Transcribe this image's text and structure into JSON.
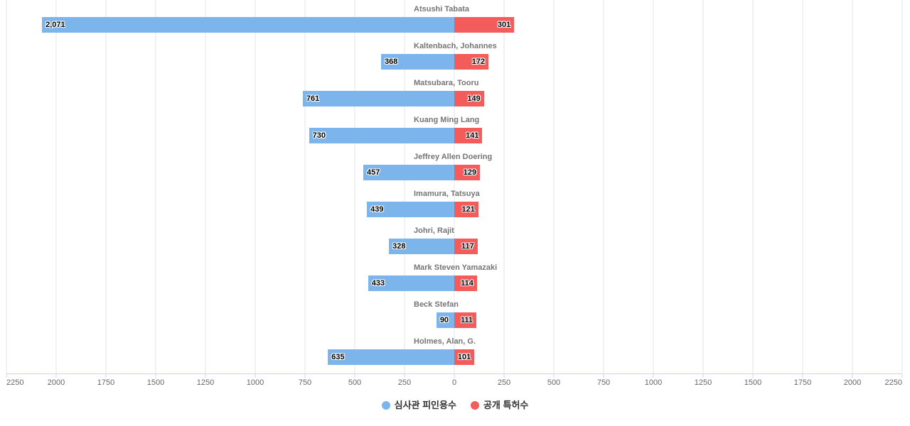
{
  "chart_data": {
    "type": "bar",
    "variant": "diverging-horizontal",
    "title": "",
    "categories": [
      "Atsushi Tabata",
      "Kaltenbach, Johannes",
      "Matsubara, Tooru",
      "Kuang Ming Lang",
      "Jeffrey Allen Doering",
      "Imamura, Tatsuya",
      "Johri, Rajit",
      "Mark Steven Yamazaki",
      "Beck Stefan",
      "Holmes, Alan, G."
    ],
    "series": [
      {
        "name": "심사관 피인용수",
        "side": "left",
        "color": "#7cb5ec",
        "values": [
          2071,
          368,
          761,
          730,
          457,
          439,
          328,
          433,
          90,
          635
        ],
        "labels": [
          "2,071",
          "368",
          "761",
          "730",
          "457",
          "439",
          "328",
          "433",
          "90",
          "635"
        ]
      },
      {
        "name": "공개 특허수",
        "side": "right",
        "color": "#f45b5b",
        "values": [
          301,
          172,
          149,
          141,
          129,
          121,
          117,
          114,
          111,
          101
        ],
        "labels": [
          "301",
          "172",
          "149",
          "141",
          "129",
          "121",
          "117",
          "114",
          "111",
          "101"
        ]
      }
    ],
    "x_axis": {
      "min": -2250,
      "max": 2250,
      "tick_interval": 250,
      "tick_labels": [
        "2250",
        "2000",
        "1750",
        "1500",
        "1250",
        "1000",
        "750",
        "500",
        "250",
        "0",
        "250",
        "500",
        "750",
        "1000",
        "1250",
        "1500",
        "1750",
        "2000",
        "2250"
      ]
    },
    "grid": true,
    "legend": {
      "position": "bottom",
      "items": [
        {
          "label": "심사관 피인용수",
          "color": "#7cb5ec"
        },
        {
          "label": "공개 특허수",
          "color": "#f45b5b"
        }
      ]
    },
    "colors": {
      "grid_line": "#e6e6e6",
      "axis_line": "#ccd6eb",
      "axis_label": "#666666",
      "category_label": "#757575",
      "value_label": "#000000",
      "background": "#ffffff"
    }
  }
}
